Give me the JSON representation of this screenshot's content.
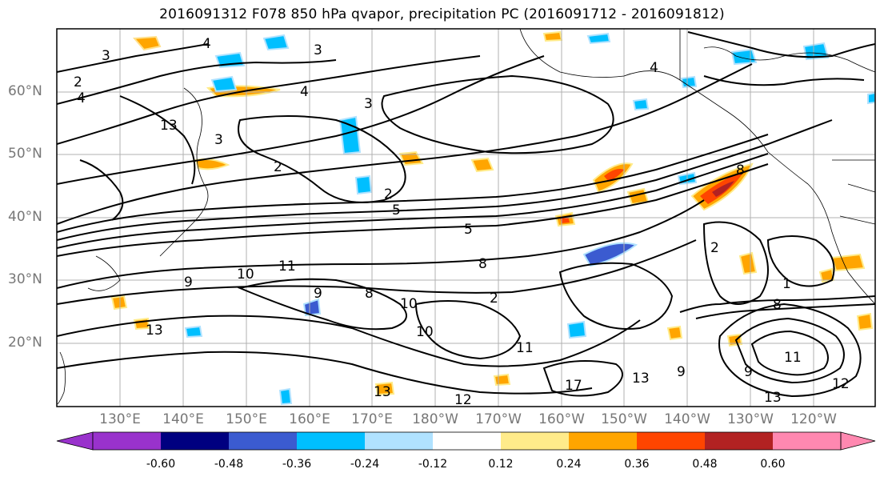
{
  "title": "2016091312 F078 850 hPa qvapor, precipitation PC (2016091712 - 2016091812)",
  "map": {
    "lat_labels": [
      "60°N",
      "50°N",
      "40°N",
      "30°N",
      "20°N"
    ],
    "lon_labels": [
      "130°E",
      "140°E",
      "150°E",
      "160°E",
      "170°E",
      "180°W",
      "170°W",
      "160°W",
      "150°W",
      "140°W",
      "130°W",
      "120°W"
    ],
    "contour_labels": [
      "3",
      "4",
      "2",
      "4",
      "3",
      "4",
      "13",
      "3",
      "5",
      "3",
      "2",
      "2",
      "2",
      "4",
      "8",
      "8",
      "5",
      "10",
      "9",
      "11",
      "13",
      "9",
      "8",
      "10",
      "10",
      "11",
      "12",
      "13",
      "17",
      "1",
      "11",
      "9",
      "13",
      "9",
      "13",
      "12",
      "8",
      "2"
    ]
  },
  "colorbar": {
    "tick_labels": [
      "-0.60",
      "-0.48",
      "-0.36",
      "-0.24",
      "-0.12",
      "0.12",
      "0.24",
      "0.36",
      "0.48",
      "0.60"
    ],
    "colors": [
      "#9932cc",
      "#000080",
      "#3b5bd0",
      "#00bfff",
      "#b0e2ff",
      "#ffffff",
      "#ffeb8a",
      "#ffa500",
      "#ff4500",
      "#b22222",
      "#ff88b0"
    ]
  }
}
